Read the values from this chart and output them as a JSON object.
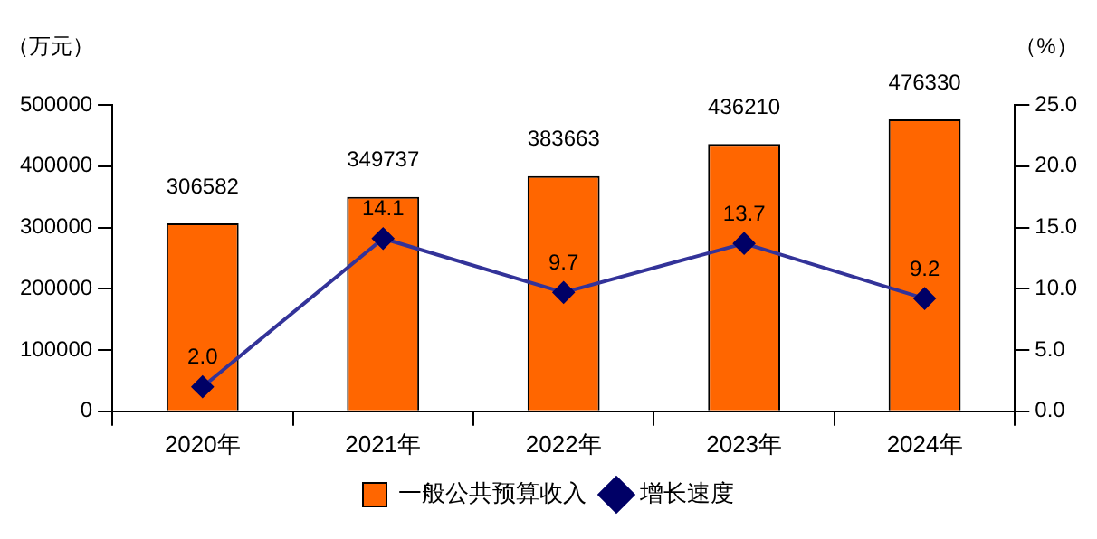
{
  "chart_data": {
    "type": "bar",
    "categories": [
      "2020年",
      "2021年",
      "2022年",
      "2023年",
      "2024年"
    ],
    "series": [
      {
        "name": "一般公共预算收入",
        "color": "#ff6600",
        "values": [
          306582,
          349737,
          383663,
          436210,
          476330
        ]
      },
      {
        "name": "增长速度",
        "type": "line",
        "axis": "y2",
        "color": "#333399",
        "values": [
          2.0,
          14.1,
          9.7,
          13.7,
          9.2
        ],
        "value_labels": [
          "2.0",
          "14.1",
          "9.7",
          "13.7",
          "9.2"
        ]
      }
    ],
    "ylabel": "（万元）",
    "y2label": "（%）",
    "ylim": [
      0,
      500000
    ],
    "yticks": [
      0,
      100000,
      200000,
      300000,
      400000,
      500000
    ],
    "y2lim": [
      0,
      25
    ],
    "y2ticks": [
      {
        "value": 0,
        "label": "0.0"
      },
      {
        "value": 5,
        "label": "5.0"
      },
      {
        "value": 10,
        "label": "10.0"
      },
      {
        "value": 15,
        "label": "15.0"
      },
      {
        "value": 20,
        "label": "20.0"
      },
      {
        "value": 25,
        "label": "25.0"
      }
    ],
    "marker": "diamond",
    "line_style": "solid",
    "data_labels": true,
    "grid": false,
    "legend": "bottom"
  }
}
